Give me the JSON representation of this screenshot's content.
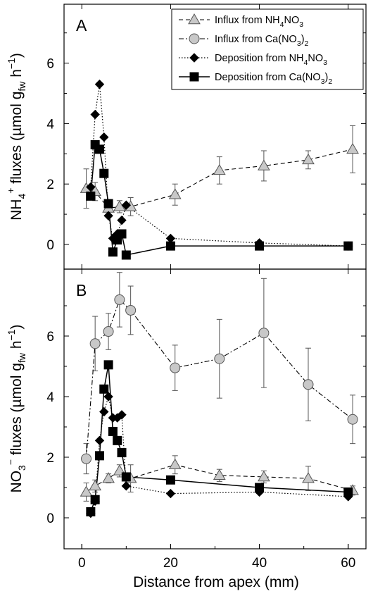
{
  "chart_data": {
    "type": "line",
    "shared_xaxis": {
      "label": "Distance from apex (mm)",
      "xlim": [
        -4,
        64
      ],
      "ticks": [
        0,
        20,
        40,
        60
      ],
      "tick_labels": [
        "0",
        "20",
        "40",
        "60"
      ]
    },
    "legend": {
      "placement": "top-right of panel A",
      "entries": [
        {
          "prefix": "Influx from NH",
          "sub1": "4",
          "mid": "NO",
          "sub2": "3",
          "suffix": "",
          "marker": "triangle",
          "fill": "#c8c8c8",
          "line": "dashed"
        },
        {
          "prefix": "Influx from Ca(NO",
          "sub1": "3",
          "mid": ")",
          "sub2": "2",
          "suffix": "",
          "marker": "circle",
          "fill": "#c8c8c8",
          "line": "dash-dot"
        },
        {
          "prefix": "Deposition from NH",
          "sub1": "4",
          "mid": "NO",
          "sub2": "3",
          "suffix": "",
          "marker": "diamond",
          "fill": "#000000",
          "line": "dotted"
        },
        {
          "prefix": "Deposition from Ca(NO",
          "sub1": "3",
          "mid": ")",
          "sub2": "2",
          "suffix": "",
          "marker": "square",
          "fill": "#000000",
          "line": "solid"
        }
      ]
    },
    "panels": [
      {
        "letter": "A",
        "ylabel": {
          "main": "NH",
          "sub": "4",
          "sup": "+",
          "rest": " fluxes (µmol g",
          "sub2": "fw",
          "rest2": " h",
          "sup2": "−1",
          "close": ")"
        },
        "ylim": [
          -0.9,
          7.8
        ],
        "yticks": [
          0,
          2,
          4,
          6
        ],
        "ytick_labels": [
          "0",
          "2",
          "4",
          "6"
        ],
        "series": [
          {
            "name": "Influx from NH4NO3",
            "marker": "triangle",
            "line": "dashed",
            "x": [
              1,
              3,
              6,
              8.5,
              11,
              21,
              31,
              41,
              51,
              61
            ],
            "y": [
              1.85,
              1.75,
              1.2,
              1.25,
              1.25,
              1.65,
              2.45,
              2.6,
              2.8,
              3.15
            ],
            "err": [
              0.65,
              0.3,
              0.2,
              0.2,
              0.3,
              0.35,
              0.45,
              0.5,
              0.3,
              0.78
            ]
          },
          {
            "name": "Deposition from NH4NO3",
            "marker": "diamond",
            "line": "dotted",
            "x": [
              2,
              3,
              4,
              5,
              6,
              7,
              8,
              9,
              10,
              20,
              40,
              60
            ],
            "y": [
              1.9,
              4.3,
              5.3,
              3.55,
              0.95,
              0.2,
              0.35,
              0.8,
              1.3,
              0.2,
              0.05,
              -0.05
            ],
            "err": []
          },
          {
            "name": "Deposition from Ca(NO3)2",
            "marker": "square",
            "line": "solid",
            "x": [
              2,
              3,
              4,
              5,
              6,
              7,
              8,
              9,
              10,
              20,
              40,
              60
            ],
            "y": [
              1.6,
              3.3,
              3.15,
              2.35,
              1.35,
              -0.25,
              0.15,
              0.35,
              -0.35,
              -0.05,
              -0.05,
              -0.05
            ],
            "err": []
          }
        ]
      },
      {
        "letter": "B",
        "ylabel": {
          "main": "NO",
          "sub": "3",
          "sup": "−",
          "rest": " fluxes (µmol g",
          "sub2": "fw",
          "rest2": " h",
          "sup2": "−1",
          "close": ")"
        },
        "ylim": [
          -0.9,
          7.8
        ],
        "yticks": [
          0,
          2,
          4,
          6
        ],
        "ytick_labels": [
          "0",
          "2",
          "4",
          "6"
        ],
        "series": [
          {
            "name": "Influx from NH4NO3",
            "marker": "triangle",
            "line": "dashed",
            "x": [
              1,
              3,
              6,
              8.5,
              11,
              21,
              31,
              41,
              51,
              61
            ],
            "y": [
              0.85,
              1.05,
              1.3,
              1.55,
              1.3,
              1.75,
              1.4,
              1.35,
              1.3,
              0.9
            ],
            "err": [
              0.3,
              0.2,
              0.15,
              0.2,
              0.45,
              0.3,
              0.2,
              0.2,
              0.4,
              0.15
            ]
          },
          {
            "name": "Influx from Ca(NO3)2",
            "marker": "circle",
            "line": "dash-dot",
            "x": [
              1,
              3,
              6,
              8.5,
              11,
              21,
              31,
              41,
              51,
              61
            ],
            "y": [
              1.95,
              5.75,
              6.15,
              7.2,
              6.85,
              4.95,
              5.25,
              6.1,
              4.4,
              3.25
            ],
            "err": [
              0.5,
              0.9,
              0.6,
              0.9,
              0.8,
              0.75,
              1.3,
              1.8,
              1.2,
              0.8
            ]
          },
          {
            "name": "Deposition from NH4NO3",
            "marker": "diamond",
            "line": "dotted",
            "x": [
              2,
              3,
              4,
              5,
              6,
              7,
              8,
              9,
              10,
              20,
              40,
              60
            ],
            "y": [
              0.15,
              0.55,
              2.55,
              3.5,
              4.0,
              3.3,
              3.3,
              3.4,
              1.05,
              0.8,
              0.85,
              0.7
            ],
            "err": []
          },
          {
            "name": "Deposition from Ca(NO3)2",
            "marker": "square",
            "line": "solid",
            "x": [
              2,
              3,
              4,
              5,
              6,
              7,
              8,
              9,
              10,
              20,
              40,
              60
            ],
            "y": [
              0.2,
              0.6,
              2.05,
              4.25,
              5.05,
              2.85,
              2.55,
              2.15,
              1.35,
              1.25,
              1.0,
              0.85
            ],
            "err": []
          }
        ]
      }
    ]
  }
}
